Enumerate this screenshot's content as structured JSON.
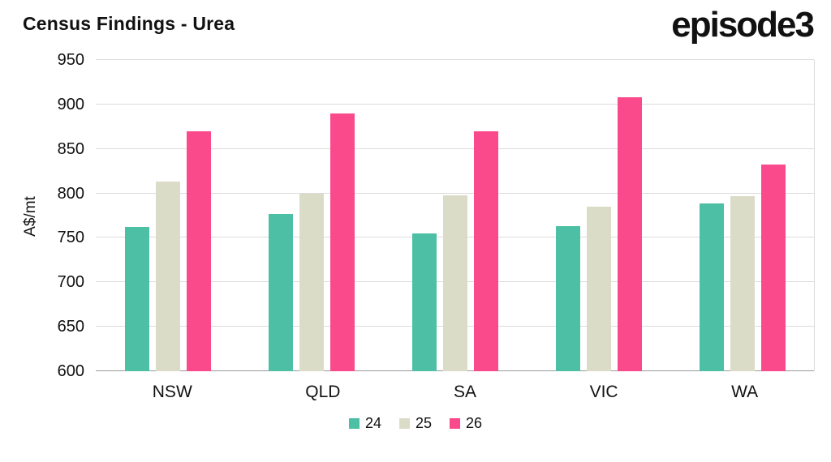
{
  "header": {
    "title": "Census Findings - Urea",
    "logo": "episode3"
  },
  "chart_data": {
    "type": "bar",
    "title": "Census Findings - Urea",
    "xlabel": "",
    "ylabel": "A$/mt",
    "categories": [
      "NSW",
      "QLD",
      "SA",
      "VIC",
      "WA"
    ],
    "series": [
      {
        "name": "24",
        "color": "#4CBFA4",
        "values": [
          762,
          777,
          755,
          763,
          789
        ]
      },
      {
        "name": "25",
        "color": "#DBDCC8",
        "values": [
          813,
          800,
          798,
          785,
          797
        ]
      },
      {
        "name": "26",
        "color": "#FA4A8C",
        "values": [
          870,
          890,
          870,
          908,
          832
        ]
      }
    ],
    "ylim": [
      600,
      950
    ],
    "ytick_step": 50,
    "grid": true,
    "legend_position": "bottom"
  }
}
